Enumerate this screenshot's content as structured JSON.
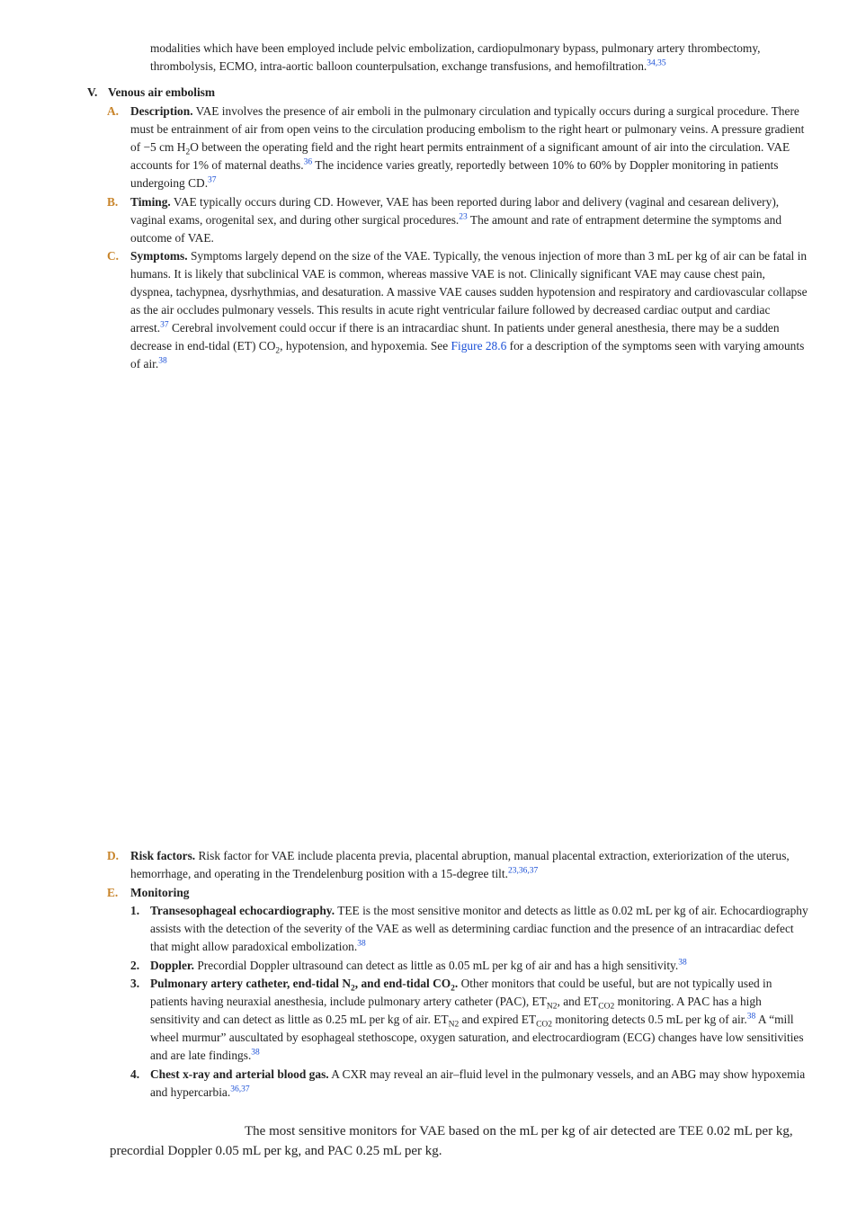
{
  "cont": {
    "text": "modalities which have been employed include pelvic embolization, cardiopulmonary bypass, pulmonary artery thrombectomy, thrombolysis, ECMO, intra-aortic balloon counterpulsation, exchange transfusions, and hemofiltration.",
    "ref": "34,35"
  },
  "section": {
    "num": "V.",
    "title": "Venous air embolism"
  },
  "A": {
    "marker": "A.",
    "heading": "Description.",
    "t1": " VAE involves the presence of air emboli in the pulmonary circulation and typically occurs during a surgical procedure. There must be entrainment of air from open veins to the circulation producing embolism to the right heart or pulmonary veins. A pressure gradient of −5 cm H",
    "sub1": "2",
    "t2": "O between the operating field and the right heart permits entrainment of a significant amount of air into the circulation. VAE accounts for 1% of maternal deaths.",
    "ref1": "36",
    "t3": " The incidence varies greatly, reportedly between 10% to 60% by Doppler monitoring in patients undergoing CD.",
    "ref2": "37"
  },
  "B": {
    "marker": "B.",
    "heading": "Timing.",
    "t1": " VAE typically occurs during CD. However, VAE has been reported during labor and delivery (vaginal and cesarean delivery), vaginal exams, orogenital sex, and during other surgical procedures.",
    "ref1": "23",
    "t2": " The amount and rate of entrapment determine the symptoms and outcome of VAE."
  },
  "C": {
    "marker": "C.",
    "heading": "Symptoms.",
    "t1": " Symptoms largely depend on the size of the VAE. Typically, the venous injection of more than 3 mL per kg of air can be fatal in humans. It is likely that subclinical VAE is common, whereas massive VAE is not. Clinically significant VAE may cause chest pain, dyspnea, tachypnea, dysrhythmias, and desaturation. A massive VAE causes sudden hypotension and respiratory and cardiovascular collapse as the air occludes pulmonary vessels. This results in acute right ventricular failure followed by decreased cardiac output and cardiac arrest.",
    "ref1": "37",
    "t2": " Cerebral involvement could occur if there is an intracardiac shunt. In patients under general anesthesia, there may be a sudden decrease in end-tidal (ET) CO",
    "sub1": "2",
    "t3": ", hypotension, and hypoxemia. See ",
    "link": "Figure 28.6",
    "t4": " for a description of the symptoms seen with varying amounts of air.",
    "ref2": "38"
  },
  "D": {
    "marker": "D.",
    "heading": "Risk factors.",
    "t1": " Risk factor for VAE include placenta previa, placental abruption, manual placental extraction, exteriorization of the uterus, hemorrhage, and operating in the Trendelenburg position with a 15-degree tilt.",
    "ref1": "23,36,37"
  },
  "E": {
    "marker": "E.",
    "heading": "Monitoring",
    "items": [
      {
        "num": "1.",
        "heading": "Transesophageal echocardiography.",
        "t1": " TEE is the most sensitive monitor and detects as little as 0.02 mL per kg of air. Echocardiography assists with the detection of the severity of the VAE as well as determining cardiac function and the presence of an intracardiac defect that might allow paradoxical embolization.",
        "ref1": "38"
      },
      {
        "num": "2.",
        "heading": "Doppler.",
        "t1": " Precordial Doppler ultrasound can detect as little as 0.05 mL per kg of air and has a high sensitivity.",
        "ref1": "38"
      },
      {
        "num": "3.",
        "heading_a": "Pulmonary artery catheter, end-tidal N",
        "heading_sub": "2",
        "heading_b": ", and end-tidal CO",
        "heading_sub2": "2",
        "heading_c": ".",
        "t1": " Other monitors that could be useful, but are not typically used in patients having neuraxial anesthesia, include pulmonary artery catheter (PAC), ET",
        "sub1": "N2",
        "t2": ", and ET",
        "sub2": "CO2",
        "t3": " monitoring. A PAC has a high sensitivity and can detect as little as 0.25 mL per kg of air. ET",
        "sub3": "N2",
        "t4": " and expired ET",
        "sub4": "CO2",
        "t5": " monitoring detects 0.5 mL per kg of air.",
        "ref1": "38",
        "t6": " A “mill wheel murmur” auscultated by esophageal stethoscope, oxygen saturation, and electrocardiogram (ECG) changes have low sensitivities and are late findings.",
        "ref2": "38"
      },
      {
        "num": "4.",
        "heading": "Chest x-ray and arterial blood gas.",
        "t1": " A CXR may reveal an air–fluid level in the pulmonary vessels, and an ABG may show hypoxemia and hypercarbia.",
        "ref1": "36,37"
      }
    ]
  },
  "callout": {
    "text": "The most sensitive monitors for VAE based on the mL per kg of air detected are TEE 0.02 mL per kg, precordial Doppler 0.05 mL per kg, and PAC 0.25 mL per kg."
  }
}
